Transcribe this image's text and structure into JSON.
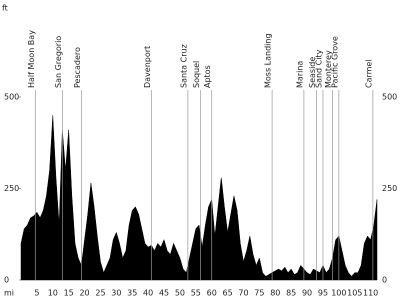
{
  "chart_data": {
    "type": "area",
    "color": "#000000",
    "line_color": "#999999",
    "y_label": "ft",
    "x_label": "mi",
    "x": [
      0,
      1,
      2,
      3,
      4,
      5,
      6,
      7,
      8,
      9,
      10,
      11,
      12,
      13,
      14,
      15,
      16,
      17,
      18,
      19,
      20,
      21,
      22,
      23,
      24,
      25,
      26,
      27,
      28,
      29,
      30,
      31,
      32,
      33,
      34,
      35,
      36,
      37,
      38,
      39,
      40,
      41,
      42,
      43,
      44,
      45,
      46,
      47,
      48,
      49,
      50,
      51,
      52,
      53,
      54,
      55,
      56,
      57,
      58,
      59,
      60,
      61,
      62,
      63,
      64,
      65,
      66,
      67,
      68,
      69,
      70,
      71,
      72,
      73,
      74,
      75,
      76,
      77,
      78,
      79,
      80,
      81,
      82,
      83,
      84,
      85,
      86,
      87,
      88,
      89,
      90,
      91,
      92,
      93,
      94,
      95,
      96,
      97,
      98,
      99,
      100,
      101,
      102,
      103,
      104,
      105,
      106,
      107,
      108,
      109,
      110,
      111,
      112
    ],
    "values": [
      100,
      140,
      150,
      170,
      175,
      185,
      170,
      190,
      230,
      300,
      450,
      280,
      150,
      410,
      300,
      410,
      230,
      100,
      60,
      40,
      110,
      180,
      265,
      200,
      120,
      50,
      20,
      40,
      60,
      110,
      130,
      100,
      60,
      80,
      150,
      190,
      200,
      180,
      140,
      100,
      90,
      95,
      80,
      100,
      90,
      110,
      80,
      70,
      100,
      80,
      60,
      30,
      20,
      60,
      100,
      140,
      150,
      90,
      150,
      200,
      220,
      120,
      200,
      280,
      200,
      130,
      180,
      230,
      190,
      100,
      50,
      80,
      120,
      70,
      40,
      60,
      20,
      10,
      15,
      20,
      25,
      30,
      25,
      35,
      20,
      30,
      15,
      20,
      40,
      30,
      20,
      15,
      30,
      25,
      20,
      40,
      20,
      30,
      60,
      110,
      120,
      80,
      40,
      20,
      10,
      20,
      20,
      40,
      100,
      120,
      110,
      150,
      220
    ],
    "xlim": [
      0,
      112
    ],
    "ylim": [
      0,
      500
    ],
    "xticks": [
      5,
      10,
      15,
      20,
      25,
      30,
      35,
      40,
      45,
      50,
      55,
      60,
      65,
      70,
      75,
      80,
      85,
      90,
      95,
      100,
      105,
      110
    ],
    "yticks": [
      0,
      250,
      500
    ],
    "annotations": [
      {
        "text": "Half Moon Bay",
        "x": 4.5
      },
      {
        "text": "San Gregorio",
        "x": 13
      },
      {
        "text": "Pescadero",
        "x": 19
      },
      {
        "text": "Davenport",
        "x": 41
      },
      {
        "text": "Santa Cruz",
        "x": 52.5
      },
      {
        "text": "Soquel",
        "x": 56.5
      },
      {
        "text": "Aptos",
        "x": 60
      },
      {
        "text": "Moss Landing",
        "x": 79
      },
      {
        "text": "Marina",
        "x": 89
      },
      {
        "text": "Seaside",
        "x": 93
      },
      {
        "text": "Sand City",
        "x": 95
      },
      {
        "text": "Monterey",
        "x": 98
      },
      {
        "text": "Pacific Grove",
        "x": 100
      },
      {
        "text": "Carmel",
        "x": 110.7
      }
    ]
  }
}
